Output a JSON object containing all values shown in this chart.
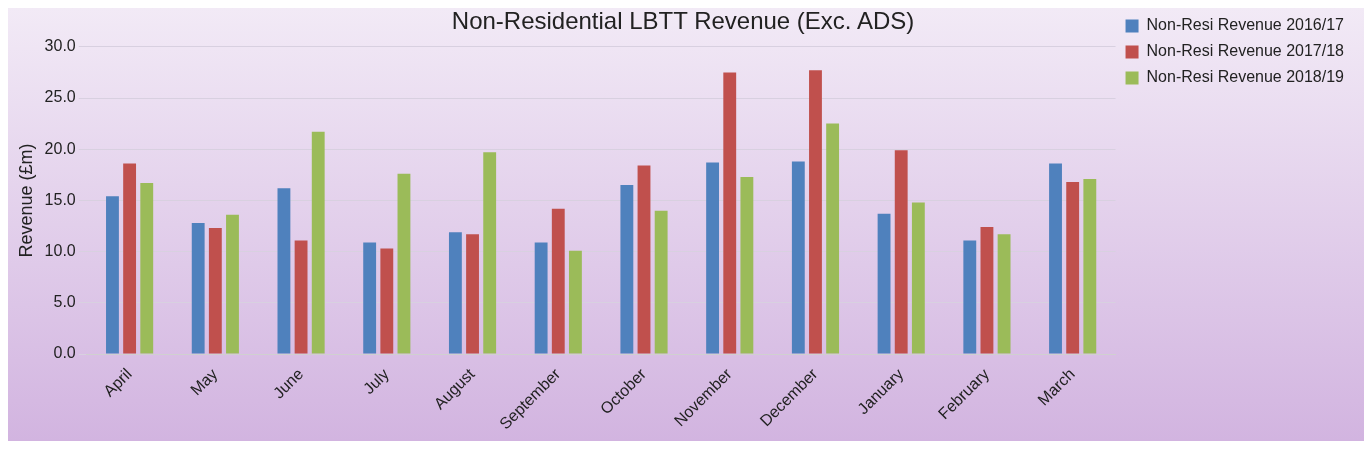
{
  "chart_data": {
    "type": "bar",
    "title": "Non-Residential LBTT Revenue (Exc. ADS)",
    "ylabel": "Revenue (£m)",
    "categories": [
      "April",
      "May",
      "June",
      "July",
      "August",
      "September",
      "October",
      "November",
      "December",
      "January",
      "February",
      "March"
    ],
    "series": [
      {
        "name": "Non-Resi Revenue 2016/17",
        "color": "#4f81bd",
        "values": [
          15.4,
          12.8,
          16.2,
          10.9,
          11.9,
          10.9,
          16.5,
          18.7,
          18.8,
          13.7,
          11.1,
          18.6
        ]
      },
      {
        "name": "Non-Resi Revenue 2017/18",
        "color": "#c0504d",
        "values": [
          18.6,
          12.3,
          11.1,
          10.3,
          11.7,
          14.2,
          18.4,
          27.5,
          27.7,
          19.9,
          12.4,
          16.8
        ]
      },
      {
        "name": "Non-Resi Revenue 2018/19",
        "color": "#9bbb59",
        "values": [
          16.7,
          13.6,
          21.7,
          17.6,
          19.7,
          10.1,
          14.0,
          17.3,
          22.5,
          14.8,
          11.7,
          17.1
        ]
      }
    ],
    "ylim": [
      0,
      30
    ],
    "yticks": [
      {
        "value": 0,
        "label": "0.0"
      },
      {
        "value": 5,
        "label": "5.0"
      },
      {
        "value": 10,
        "label": "10.0"
      },
      {
        "value": 15,
        "label": "15.0"
      },
      {
        "value": 20,
        "label": "20.0"
      },
      {
        "value": 25,
        "label": "25.0"
      },
      {
        "value": 30,
        "label": "30.0"
      }
    ],
    "grid": "y",
    "legend": "top right"
  }
}
